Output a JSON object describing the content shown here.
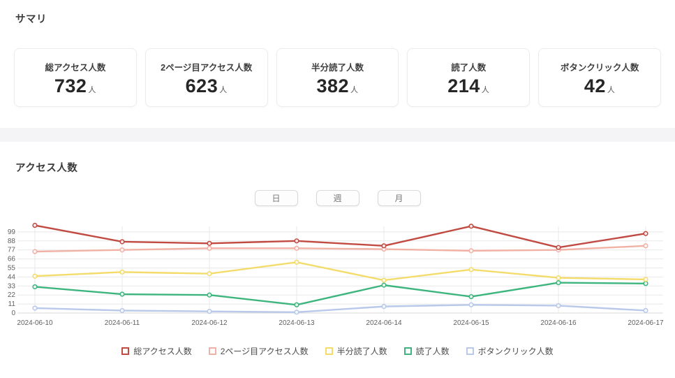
{
  "summary": {
    "heading": "サマリ",
    "unit": "人",
    "cards": [
      {
        "label": "総アクセス人数",
        "value": "732",
        "unit": "人"
      },
      {
        "label": "2ページ目アクセス人数",
        "value": "623",
        "unit": "人"
      },
      {
        "label": "半分読了人数",
        "value": "382",
        "unit": "人"
      },
      {
        "label": "読了人数",
        "value": "214",
        "unit": "人"
      },
      {
        "label": "ボタンクリック人数",
        "value": "42",
        "unit": "人"
      }
    ]
  },
  "access_section": {
    "heading": "アクセス人数",
    "period_buttons": [
      {
        "label": "日"
      },
      {
        "label": "週"
      },
      {
        "label": "月"
      }
    ]
  },
  "chart_data": {
    "type": "line",
    "title": "アクセス人数",
    "x": [
      "2024-06-10",
      "2024-06-11",
      "2024-06-12",
      "2024-06-13",
      "2024-06-14",
      "2024-06-15",
      "2024-06-16",
      "2024-06-17"
    ],
    "series": [
      {
        "name": "総アクセス人数",
        "color": "#c14b42",
        "values": [
          107,
          87,
          85,
          88,
          82,
          106,
          80,
          97
        ]
      },
      {
        "name": "2ページ目アクセス人数",
        "color": "#f1b1a5",
        "values": [
          75,
          77,
          79,
          79,
          78,
          76,
          77,
          82
        ]
      },
      {
        "name": "半分読了人数",
        "color": "#f4dc6c",
        "values": [
          45,
          50,
          48,
          62,
          40,
          53,
          43,
          41
        ]
      },
      {
        "name": "読了人数",
        "color": "#3eb57e",
        "values": [
          32,
          23,
          22,
          10,
          34,
          20,
          37,
          36
        ]
      },
      {
        "name": "ボタンクリック人数",
        "color": "#b9c9ea",
        "values": [
          6,
          3,
          2,
          1,
          8,
          10,
          9,
          3
        ]
      }
    ],
    "ylim": [
      0,
      110
    ],
    "yticks": [
      0,
      11,
      22,
      33,
      44,
      55,
      66,
      77,
      88,
      99
    ],
    "grid": true,
    "legend_position": "bottom",
    "colors": {
      "grid_line": "#e8e8e8",
      "baseline": "#d9d9d9",
      "axis_text": "#5f5f5f"
    }
  }
}
